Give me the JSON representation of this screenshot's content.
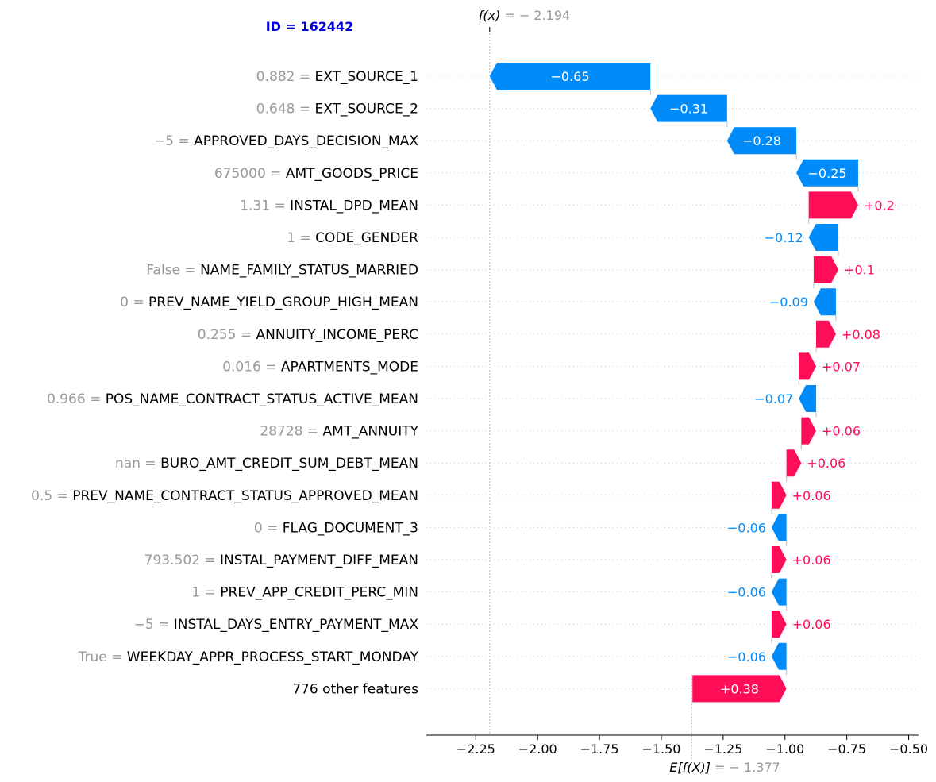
{
  "chart_data": {
    "type": "waterfall",
    "title": "ID = 162442",
    "fx": {
      "label": "f(x)",
      "value_text": "= − 2.194",
      "value": -2.194
    },
    "ex": {
      "label": "E[f(X)]",
      "value_text": "= − 1.377",
      "value": -1.377
    },
    "xlim": [
      -2.45,
      -0.46
    ],
    "xticks": [
      -2.25,
      -2.0,
      -1.75,
      -1.5,
      -1.25,
      -1.0,
      -0.75,
      -0.5
    ],
    "xtick_labels": [
      "−2.25",
      "−2.00",
      "−1.75",
      "−1.50",
      "−1.25",
      "−1.00",
      "−0.75",
      "−0.50"
    ],
    "colors": {
      "positive": "#ff0d57",
      "negative": "#008bfb",
      "muted": "#999999",
      "title": "#0000dd"
    },
    "rows": [
      {
        "value": "0.882",
        "feature": "EXT_SOURCE_1",
        "contribution": -0.65,
        "label": "−0.65"
      },
      {
        "value": "0.648",
        "feature": "EXT_SOURCE_2",
        "contribution": -0.31,
        "label": "−0.31"
      },
      {
        "value": "−5",
        "feature": "APPROVED_DAYS_DECISION_MAX",
        "contribution": -0.28,
        "label": "−0.28"
      },
      {
        "value": "675000",
        "feature": "AMT_GOODS_PRICE",
        "contribution": -0.25,
        "label": "−0.25"
      },
      {
        "value": "1.31",
        "feature": "INSTAL_DPD_MEAN",
        "contribution": 0.2,
        "label": "+0.2"
      },
      {
        "value": "1",
        "feature": "CODE_GENDER",
        "contribution": -0.12,
        "label": "−0.12"
      },
      {
        "value": "False",
        "feature": "NAME_FAMILY_STATUS_MARRIED",
        "contribution": 0.1,
        "label": "+0.1"
      },
      {
        "value": "0",
        "feature": "PREV_NAME_YIELD_GROUP_HIGH_MEAN",
        "contribution": -0.09,
        "label": "−0.09"
      },
      {
        "value": "0.255",
        "feature": "ANNUITY_INCOME_PERC",
        "contribution": 0.08,
        "label": "+0.08"
      },
      {
        "value": "0.016",
        "feature": "APARTMENTS_MODE",
        "contribution": 0.07,
        "label": "+0.07"
      },
      {
        "value": "0.966",
        "feature": "POS_NAME_CONTRACT_STATUS_ACTIVE_MEAN",
        "contribution": -0.07,
        "label": "−0.07"
      },
      {
        "value": "28728",
        "feature": "AMT_ANNUITY",
        "contribution": 0.06,
        "label": "+0.06"
      },
      {
        "value": "nan",
        "feature": "BURO_AMT_CREDIT_SUM_DEBT_MEAN",
        "contribution": 0.06,
        "label": "+0.06"
      },
      {
        "value": "0.5",
        "feature": "PREV_NAME_CONTRACT_STATUS_APPROVED_MEAN",
        "contribution": 0.06,
        "label": "+0.06"
      },
      {
        "value": "0",
        "feature": "FLAG_DOCUMENT_3",
        "contribution": -0.06,
        "label": "−0.06"
      },
      {
        "value": "793.502",
        "feature": "INSTAL_PAYMENT_DIFF_MEAN",
        "contribution": 0.06,
        "label": "+0.06"
      },
      {
        "value": "1",
        "feature": "PREV_APP_CREDIT_PERC_MIN",
        "contribution": -0.06,
        "label": "−0.06"
      },
      {
        "value": "−5",
        "feature": "INSTAL_DAYS_ENTRY_PAYMENT_MAX",
        "contribution": 0.06,
        "label": "+0.06"
      },
      {
        "value": "True",
        "feature": "WEEKDAY_APPR_PROCESS_START_MONDAY",
        "contribution": -0.06,
        "label": "−0.06"
      },
      {
        "value": "",
        "feature": "776 other features",
        "contribution": 0.38,
        "label": "+0.38"
      }
    ]
  }
}
